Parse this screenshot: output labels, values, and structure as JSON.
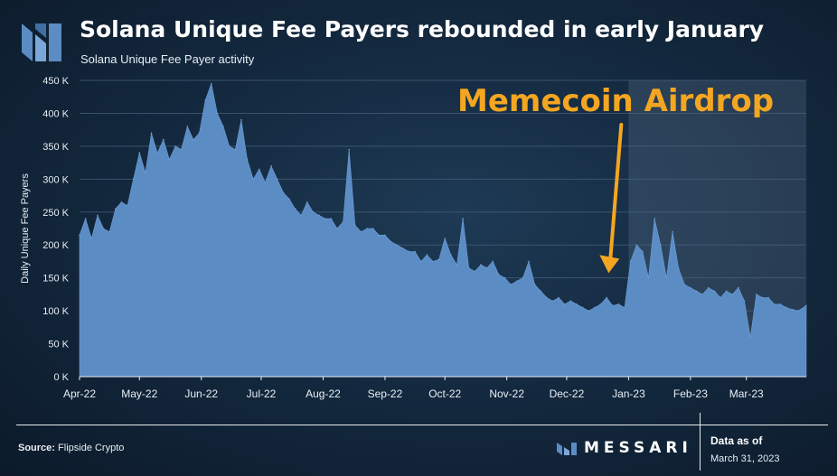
{
  "header": {
    "title": "Solana Unique Fee Payers rebounded in early January",
    "subtitle": "Solana Unique Fee Payer activity"
  },
  "annotation": {
    "text": "Memecoin Airdrop"
  },
  "footer": {
    "source_label": "Source:",
    "source_value": "Flipside Crypto",
    "brand": "MESSARI",
    "as_of_label": "Data as of",
    "as_of_date": "March 31, 2023"
  },
  "colors": {
    "area": "#5b8cc4",
    "annotation": "#f4a621",
    "grid": "#4a6480",
    "highlight": "#8fa9c4"
  },
  "icons": {
    "logo": "messari-logo-icon"
  },
  "chart_data": {
    "type": "area",
    "ylabel": "Daily Unique Fee Payers",
    "ylim": [
      0,
      450000
    ],
    "yticks": [
      0,
      50000,
      100000,
      150000,
      200000,
      250000,
      300000,
      350000,
      400000,
      450000
    ],
    "ytick_labels": [
      "0 K",
      "50 K",
      "100 K",
      "150 K",
      "200 K",
      "250 K",
      "300 K",
      "350 K",
      "400 K",
      "450 K"
    ],
    "xlim": [
      "2022-04-01",
      "2023-03-31"
    ],
    "xticks": [
      "2022-04-01",
      "2022-05-01",
      "2022-06-01",
      "2022-07-01",
      "2022-08-01",
      "2022-09-01",
      "2022-10-01",
      "2022-11-01",
      "2022-12-01",
      "2023-01-01",
      "2023-02-01",
      "2023-03-01"
    ],
    "xtick_labels": [
      "Apr-22",
      "May-22",
      "Jun-22",
      "Jul-22",
      "Aug-22",
      "Sep-22",
      "Oct-22",
      "Nov-22",
      "Dec-22",
      "Jan-23",
      "Feb-23",
      "Mar-23"
    ],
    "highlight_range": [
      "2023-01-01",
      "2023-03-31"
    ],
    "annotation_arrow": {
      "from": "2022-12-22",
      "to": "2022-12-22",
      "y_to": 160000
    },
    "series": [
      {
        "x": [
          "2022-04-01",
          "2022-04-04",
          "2022-04-07",
          "2022-04-10",
          "2022-04-13",
          "2022-04-16",
          "2022-04-19",
          "2022-04-22",
          "2022-04-25",
          "2022-04-28",
          "2022-05-01",
          "2022-05-04",
          "2022-05-07",
          "2022-05-10",
          "2022-05-13",
          "2022-05-16",
          "2022-05-19",
          "2022-05-22",
          "2022-05-25",
          "2022-05-28",
          "2022-05-31",
          "2022-06-03",
          "2022-06-06",
          "2022-06-09",
          "2022-06-12",
          "2022-06-15",
          "2022-06-18",
          "2022-06-21",
          "2022-06-24",
          "2022-06-27",
          "2022-06-30",
          "2022-07-03",
          "2022-07-06",
          "2022-07-09",
          "2022-07-12",
          "2022-07-15",
          "2022-07-18",
          "2022-07-21",
          "2022-07-24",
          "2022-07-27",
          "2022-07-30",
          "2022-08-02",
          "2022-08-05",
          "2022-08-08",
          "2022-08-11",
          "2022-08-14",
          "2022-08-17",
          "2022-08-20",
          "2022-08-23",
          "2022-08-26",
          "2022-08-29",
          "2022-09-01",
          "2022-09-04",
          "2022-09-07",
          "2022-09-10",
          "2022-09-13",
          "2022-09-16",
          "2022-09-19",
          "2022-09-22",
          "2022-09-25",
          "2022-09-28",
          "2022-10-01",
          "2022-10-04",
          "2022-10-07",
          "2022-10-10",
          "2022-10-13",
          "2022-10-16",
          "2022-10-19",
          "2022-10-22",
          "2022-10-25",
          "2022-10-28",
          "2022-10-31",
          "2022-11-03",
          "2022-11-06",
          "2022-11-09",
          "2022-11-12",
          "2022-11-15",
          "2022-11-18",
          "2022-11-21",
          "2022-11-24",
          "2022-11-27",
          "2022-11-30",
          "2022-12-03",
          "2022-12-06",
          "2022-12-09",
          "2022-12-12",
          "2022-12-15",
          "2022-12-18",
          "2022-12-21",
          "2022-12-24",
          "2022-12-27",
          "2022-12-30",
          "2023-01-02",
          "2023-01-05",
          "2023-01-08",
          "2023-01-11",
          "2023-01-14",
          "2023-01-17",
          "2023-01-20",
          "2023-01-23",
          "2023-01-26",
          "2023-01-29",
          "2023-02-01",
          "2023-02-04",
          "2023-02-07",
          "2023-02-10",
          "2023-02-13",
          "2023-02-16",
          "2023-02-19",
          "2023-02-22",
          "2023-02-25",
          "2023-02-28",
          "2023-03-03",
          "2023-03-06",
          "2023-03-09",
          "2023-03-12",
          "2023-03-15",
          "2023-03-18",
          "2023-03-21",
          "2023-03-24",
          "2023-03-27",
          "2023-03-31"
        ],
        "values": [
          215000,
          240000,
          210000,
          245000,
          225000,
          220000,
          255000,
          265000,
          260000,
          300000,
          340000,
          310000,
          370000,
          340000,
          360000,
          330000,
          350000,
          345000,
          380000,
          360000,
          370000,
          420000,
          445000,
          400000,
          380000,
          350000,
          345000,
          390000,
          330000,
          300000,
          315000,
          295000,
          320000,
          300000,
          280000,
          270000,
          255000,
          245000,
          265000,
          250000,
          245000,
          240000,
          240000,
          225000,
          235000,
          345000,
          230000,
          220000,
          225000,
          225000,
          215000,
          215000,
          205000,
          200000,
          195000,
          190000,
          190000,
          175000,
          185000,
          175000,
          178000,
          210000,
          185000,
          170000,
          240000,
          165000,
          160000,
          170000,
          165000,
          175000,
          155000,
          150000,
          140000,
          145000,
          150000,
          175000,
          140000,
          130000,
          120000,
          115000,
          120000,
          110000,
          115000,
          110000,
          105000,
          100000,
          105000,
          110000,
          120000,
          108000,
          110000,
          105000,
          175000,
          200000,
          190000,
          150000,
          240000,
          200000,
          150000,
          220000,
          165000,
          140000,
          135000,
          130000,
          125000,
          135000,
          130000,
          120000,
          130000,
          125000,
          135000,
          115000,
          60000,
          125000,
          120000,
          120000,
          110000,
          110000,
          105000,
          102000,
          100000,
          108000
        ]
      }
    ]
  }
}
